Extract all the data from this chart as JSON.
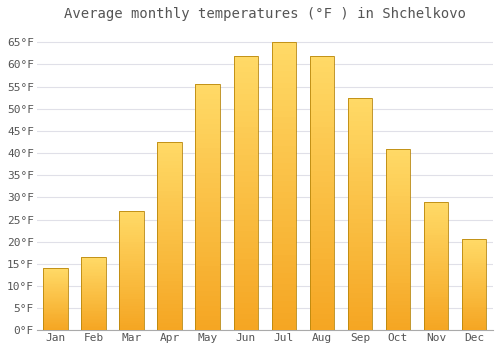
{
  "title": "Average monthly temperatures (°F ) in Shchelkovo",
  "months": [
    "Jan",
    "Feb",
    "Mar",
    "Apr",
    "May",
    "Jun",
    "Jul",
    "Aug",
    "Sep",
    "Oct",
    "Nov",
    "Dec"
  ],
  "values": [
    14,
    16.5,
    27,
    42.5,
    55.5,
    62,
    65,
    62,
    52.5,
    41,
    29,
    20.5
  ],
  "bar_color_bottom": "#F5A623",
  "bar_color_top": "#FFD966",
  "bar_edge_color": "#B8860B",
  "background_color": "#FFFFFF",
  "plot_bg_color": "#FFFFFF",
  "grid_color": "#E0E0E8",
  "text_color": "#555555",
  "ylim": [
    0,
    68
  ],
  "yticks": [
    0,
    5,
    10,
    15,
    20,
    25,
    30,
    35,
    40,
    45,
    50,
    55,
    60,
    65
  ],
  "title_fontsize": 10,
  "tick_fontsize": 8,
  "font_family": "monospace"
}
